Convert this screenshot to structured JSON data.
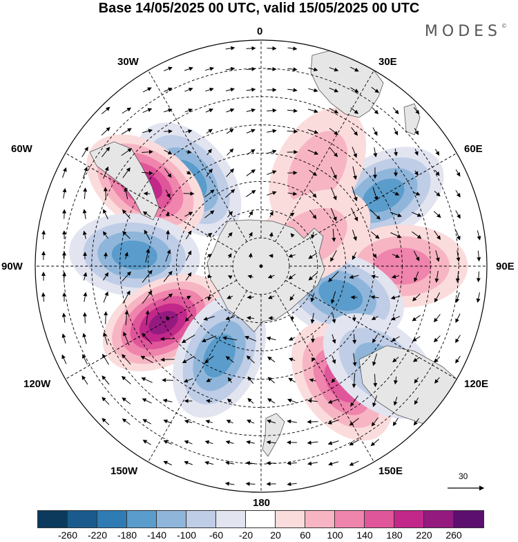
{
  "title": "Base 14/05/2025 00 UTC, valid 15/05/2025 00 UTC",
  "brand": "MODES",
  "brand_mark": "©",
  "longitude_labels": {
    "lon_0": "0",
    "lon_30e": "30E",
    "lon_60e": "60E",
    "lon_90e": "90E",
    "lon_120e": "120E",
    "lon_150e": "150E",
    "lon_180": "180",
    "lon_150w": "150W",
    "lon_120w": "120W",
    "lon_90w": "90W",
    "lon_60w": "60W",
    "lon_30w": "30W"
  },
  "wind_scale": {
    "value": "30"
  },
  "colorbar": {
    "ticks": [
      "-260",
      "-220",
      "-180",
      "-140",
      "-100",
      "-60",
      "-20",
      "20",
      "60",
      "100",
      "140",
      "180",
      "220",
      "260"
    ],
    "colors": [
      "#0b3a5c",
      "#1a5a8c",
      "#2f7bb4",
      "#5a9ccb",
      "#8fb6da",
      "#bfcde6",
      "#e2e4f0",
      "#ffffff",
      "#fbdcdc",
      "#f7b5c3",
      "#ef84ac",
      "#e0569a",
      "#c2288a",
      "#941a80",
      "#5c0f6e"
    ]
  },
  "map": {
    "projection": "south-polar-stereographic",
    "land_color": "#e6e6e6",
    "anomalies": [
      {
        "lon": -40,
        "lat": -50,
        "value": -160
      },
      {
        "lon": -55,
        "lat": -40,
        "value": 200
      },
      {
        "lon": -85,
        "lat": -45,
        "value": -140
      },
      {
        "lon": -120,
        "lat": -50,
        "value": 220
      },
      {
        "lon": -155,
        "lat": -55,
        "value": -160
      },
      {
        "lon": 60,
        "lat": -40,
        "value": -140
      },
      {
        "lon": 90,
        "lat": -40,
        "value": 120
      },
      {
        "lon": 110,
        "lat": -60,
        "value": -160
      },
      {
        "lon": 145,
        "lat": -40,
        "value": 140
      },
      {
        "lon": 130,
        "lat": -35,
        "value": -120
      },
      {
        "lon": 30,
        "lat": -50,
        "value": 60
      },
      {
        "lon": 60,
        "lat": -70,
        "value": 80
      }
    ]
  }
}
